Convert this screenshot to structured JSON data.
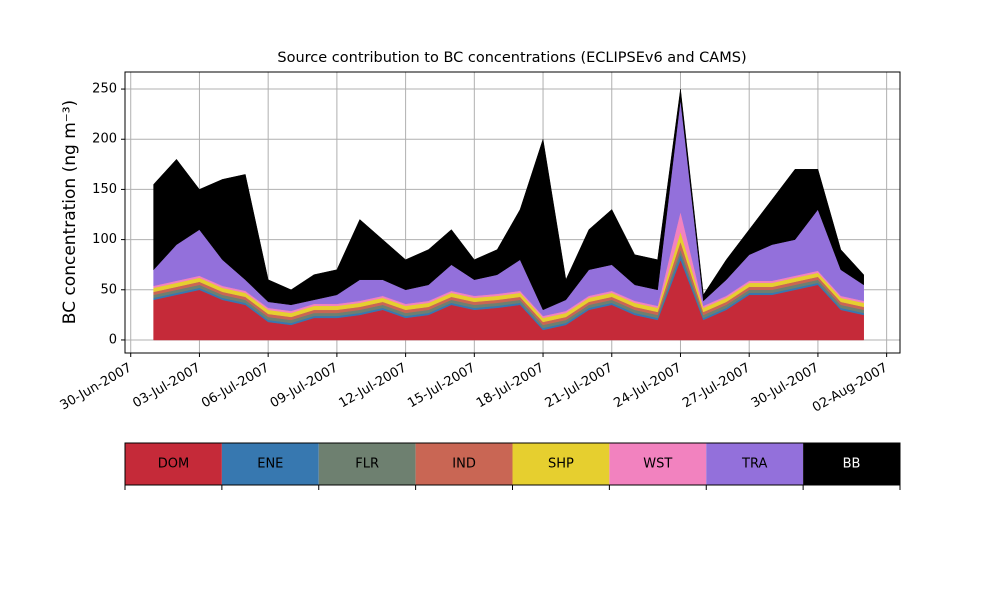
{
  "chart_data": {
    "type": "stacked_area",
    "title": "Source contribution to BC concentrations (ECLIPSEv6 and CAMS)",
    "y_label": "BC concentration (ng m⁻³)",
    "x": [
      "2007-07-01",
      "2007-07-02",
      "2007-07-03",
      "2007-07-04",
      "2007-07-05",
      "2007-07-06",
      "2007-07-07",
      "2007-07-08",
      "2007-07-09",
      "2007-07-10",
      "2007-07-11",
      "2007-07-12",
      "2007-07-13",
      "2007-07-14",
      "2007-07-15",
      "2007-07-16",
      "2007-07-17",
      "2007-07-18",
      "2007-07-19",
      "2007-07-20",
      "2007-07-21",
      "2007-07-22",
      "2007-07-23",
      "2007-07-24",
      "2007-07-25",
      "2007-07-26",
      "2007-07-27",
      "2007-07-28",
      "2007-07-29",
      "2007-07-30",
      "2007-07-31",
      "2007-08-01"
    ],
    "series": [
      {
        "name": "DOM",
        "color": "#c52a39",
        "values": [
          40,
          45,
          50,
          40,
          35,
          18,
          15,
          22,
          22,
          25,
          30,
          22,
          25,
          35,
          30,
          32,
          35,
          10,
          15,
          30,
          35,
          25,
          20,
          80,
          20,
          30,
          45,
          45,
          50,
          55,
          30,
          25
        ]
      },
      {
        "name": "ENE",
        "color": "#3778b0",
        "values": [
          2,
          2,
          2,
          2,
          2,
          2,
          2,
          2,
          2,
          2,
          2,
          2,
          2,
          2,
          2,
          2,
          2,
          2,
          2,
          2,
          2,
          2,
          2,
          5,
          2,
          2,
          2,
          2,
          2,
          2,
          2,
          2
        ]
      },
      {
        "name": "FLR",
        "color": "#6e8070",
        "values": [
          3,
          3,
          3,
          3,
          3,
          3,
          3,
          3,
          3,
          3,
          3,
          3,
          3,
          3,
          3,
          3,
          3,
          3,
          3,
          3,
          3,
          3,
          3,
          5,
          3,
          3,
          3,
          3,
          3,
          3,
          3,
          3
        ]
      },
      {
        "name": "IND",
        "color": "#c96654",
        "values": [
          3,
          3,
          3,
          3,
          3,
          3,
          3,
          3,
          3,
          3,
          3,
          3,
          3,
          3,
          3,
          3,
          3,
          3,
          3,
          3,
          3,
          3,
          3,
          8,
          3,
          3,
          3,
          3,
          3,
          3,
          3,
          3
        ]
      },
      {
        "name": "SHP",
        "color": "#e6cf2f",
        "values": [
          4,
          4,
          4,
          4,
          4,
          4,
          4,
          4,
          4,
          4,
          4,
          4,
          4,
          4,
          4,
          4,
          4,
          4,
          4,
          4,
          4,
          4,
          4,
          10,
          4,
          4,
          4,
          4,
          4,
          4,
          4,
          4
        ]
      },
      {
        "name": "WST",
        "color": "#f282bf",
        "values": [
          2,
          2,
          2,
          2,
          2,
          2,
          2,
          2,
          2,
          2,
          2,
          2,
          2,
          2,
          2,
          2,
          2,
          2,
          2,
          2,
          2,
          2,
          2,
          20,
          2,
          2,
          2,
          2,
          2,
          2,
          2,
          2
        ]
      },
      {
        "name": "TRA",
        "color": "#9370db",
        "values": [
          16,
          36,
          46,
          26,
          11,
          6,
          6,
          4,
          9,
          21,
          16,
          14,
          16,
          26,
          16,
          19,
          31,
          6,
          11,
          26,
          26,
          16,
          16,
          112,
          5,
          16,
          26,
          36,
          36,
          61,
          26,
          16
        ]
      },
      {
        "name": "BB",
        "color": "#000000",
        "values": [
          85,
          85,
          40,
          80,
          105,
          22,
          15,
          25,
          25,
          60,
          40,
          30,
          35,
          35,
          20,
          25,
          50,
          170,
          20,
          40,
          55,
          30,
          30,
          10,
          6,
          20,
          25,
          45,
          70,
          40,
          20,
          10
        ]
      }
    ],
    "xlim": [
      "2007-06-29T18:00",
      "2007-08-02T14:00"
    ],
    "xticks": [
      {
        "value": "2007-06-30",
        "label": "30-Jun-2007"
      },
      {
        "value": "2007-07-03",
        "label": "03-Jul-2007"
      },
      {
        "value": "2007-07-06",
        "label": "06-Jul-2007"
      },
      {
        "value": "2007-07-09",
        "label": "09-Jul-2007"
      },
      {
        "value": "2007-07-12",
        "label": "12-Jul-2007"
      },
      {
        "value": "2007-07-15",
        "label": "15-Jul-2007"
      },
      {
        "value": "2007-07-18",
        "label": "18-Jul-2007"
      },
      {
        "value": "2007-07-21",
        "label": "21-Jul-2007"
      },
      {
        "value": "2007-07-24",
        "label": "24-Jul-2007"
      },
      {
        "value": "2007-07-27",
        "label": "27-Jul-2007"
      },
      {
        "value": "2007-07-30",
        "label": "30-Jul-2007"
      },
      {
        "value": "2007-08-02",
        "label": "02-Aug-2007"
      }
    ],
    "ylim": [
      -13,
      267
    ],
    "yticks": [
      0,
      50,
      100,
      150,
      200,
      250
    ],
    "grid": true
  }
}
